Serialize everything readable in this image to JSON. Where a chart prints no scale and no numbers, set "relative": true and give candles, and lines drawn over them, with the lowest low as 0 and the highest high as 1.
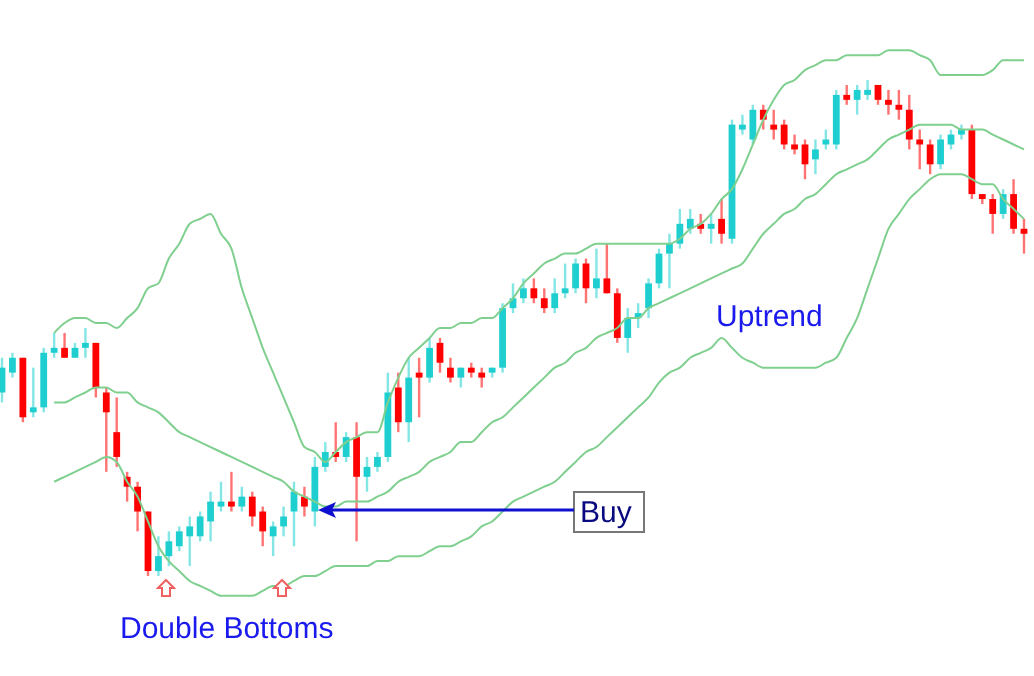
{
  "chart_data": {
    "type": "candlestick",
    "relative": true,
    "categories": [
      null,
      null,
      null,
      null,
      null,
      null,
      null,
      null,
      null,
      null,
      null,
      null,
      null,
      null,
      null,
      null,
      null,
      null,
      null,
      null,
      null,
      null,
      null,
      null,
      null,
      null,
      null,
      null,
      null,
      null,
      null,
      null,
      null,
      null,
      null,
      null,
      null,
      null,
      null,
      null,
      null,
      null,
      null,
      null,
      null,
      null,
      null,
      null,
      null,
      null,
      null,
      null,
      null,
      null,
      null,
      null,
      null,
      null,
      null,
      null,
      null,
      null,
      null,
      null,
      null,
      null,
      null,
      null,
      null,
      null,
      null,
      null,
      null,
      null,
      null,
      null,
      null,
      null,
      null,
      null,
      null,
      null,
      null,
      null,
      null,
      null,
      null,
      null,
      null,
      null,
      null,
      null,
      null,
      null,
      null,
      null,
      null,
      null,
      null
    ],
    "ohlc": [
      [
        0.37,
        0.44,
        0.35,
        0.42
      ],
      [
        0.41,
        0.45,
        0.4,
        0.44
      ],
      [
        0.44,
        0.44,
        0.31,
        0.32
      ],
      [
        0.33,
        0.42,
        0.32,
        0.34
      ],
      [
        0.34,
        0.46,
        0.33,
        0.45
      ],
      [
        0.45,
        0.49,
        0.44,
        0.46
      ],
      [
        0.46,
        0.49,
        0.44,
        0.44
      ],
      [
        0.44,
        0.47,
        0.44,
        0.46
      ],
      [
        0.46,
        0.5,
        0.44,
        0.47
      ],
      [
        0.47,
        0.47,
        0.36,
        0.38
      ],
      [
        0.37,
        0.38,
        0.21,
        0.33
      ],
      [
        0.29,
        0.36,
        0.22,
        0.24
      ],
      [
        0.2,
        0.21,
        0.15,
        0.18
      ],
      [
        0.18,
        0.19,
        0.09,
        0.13
      ],
      [
        0.13,
        0.13,
        0.0,
        0.01
      ],
      [
        0.01,
        0.08,
        0.0,
        0.04
      ],
      [
        0.04,
        0.09,
        0.02,
        0.07
      ],
      [
        0.06,
        0.1,
        0.05,
        0.09
      ],
      [
        0.08,
        0.12,
        0.02,
        0.1
      ],
      [
        0.08,
        0.13,
        0.07,
        0.12
      ],
      [
        0.11,
        0.17,
        0.07,
        0.15
      ],
      [
        0.14,
        0.19,
        0.13,
        0.15
      ],
      [
        0.15,
        0.21,
        0.13,
        0.14
      ],
      [
        0.14,
        0.18,
        0.13,
        0.16
      ],
      [
        0.16,
        0.17,
        0.1,
        0.12
      ],
      [
        0.13,
        0.14,
        0.06,
        0.09
      ],
      [
        0.08,
        0.11,
        0.04,
        0.1
      ],
      [
        0.1,
        0.14,
        0.08,
        0.12
      ],
      [
        0.13,
        0.19,
        0.06,
        0.17
      ],
      [
        0.16,
        0.18,
        0.12,
        0.14
      ],
      [
        0.13,
        0.24,
        0.1,
        0.22
      ],
      [
        0.22,
        0.27,
        0.21,
        0.25
      ],
      [
        0.25,
        0.31,
        0.23,
        0.24
      ],
      [
        0.24,
        0.29,
        0.23,
        0.28
      ],
      [
        0.28,
        0.31,
        0.07,
        0.2
      ],
      [
        0.2,
        0.24,
        0.17,
        0.22
      ],
      [
        0.22,
        0.25,
        0.21,
        0.24
      ],
      [
        0.24,
        0.41,
        0.23,
        0.37
      ],
      [
        0.38,
        0.41,
        0.29,
        0.31
      ],
      [
        0.31,
        0.44,
        0.27,
        0.4
      ],
      [
        0.41,
        0.44,
        0.32,
        0.4
      ],
      [
        0.4,
        0.48,
        0.39,
        0.46
      ],
      [
        0.47,
        0.48,
        0.41,
        0.43
      ],
      [
        0.42,
        0.44,
        0.39,
        0.4
      ],
      [
        0.4,
        0.42,
        0.38,
        0.42
      ],
      [
        0.42,
        0.43,
        0.4,
        0.41
      ],
      [
        0.41,
        0.42,
        0.38,
        0.4
      ],
      [
        0.41,
        0.42,
        0.4,
        0.42
      ],
      [
        0.42,
        0.55,
        0.41,
        0.54
      ],
      [
        0.54,
        0.59,
        0.53,
        0.56
      ],
      [
        0.56,
        0.6,
        0.55,
        0.58
      ],
      [
        0.58,
        0.6,
        0.55,
        0.56
      ],
      [
        0.56,
        0.58,
        0.53,
        0.54
      ],
      [
        0.54,
        0.6,
        0.53,
        0.57
      ],
      [
        0.57,
        0.63,
        0.56,
        0.58
      ],
      [
        0.58,
        0.64,
        0.57,
        0.63
      ],
      [
        0.63,
        0.64,
        0.55,
        0.58
      ],
      [
        0.58,
        0.66,
        0.56,
        0.6
      ],
      [
        0.6,
        0.67,
        0.57,
        0.57
      ],
      [
        0.57,
        0.58,
        0.47,
        0.48
      ],
      [
        0.48,
        0.54,
        0.45,
        0.52
      ],
      [
        0.52,
        0.55,
        0.5,
        0.53
      ],
      [
        0.54,
        0.6,
        0.52,
        0.59
      ],
      [
        0.59,
        0.66,
        0.58,
        0.65
      ],
      [
        0.65,
        0.69,
        0.58,
        0.67
      ],
      [
        0.67,
        0.74,
        0.66,
        0.71
      ],
      [
        0.7,
        0.74,
        0.69,
        0.72
      ],
      [
        0.71,
        0.73,
        0.69,
        0.7
      ],
      [
        0.7,
        0.73,
        0.67,
        0.71
      ],
      [
        0.72,
        0.76,
        0.67,
        0.69
      ],
      [
        0.68,
        0.92,
        0.67,
        0.91
      ],
      [
        0.9,
        0.93,
        0.89,
        0.91
      ],
      [
        0.88,
        0.95,
        0.87,
        0.94
      ],
      [
        0.94,
        0.95,
        0.9,
        0.92
      ],
      [
        0.91,
        0.94,
        0.88,
        0.9
      ],
      [
        0.91,
        0.92,
        0.86,
        0.87
      ],
      [
        0.87,
        0.89,
        0.85,
        0.86
      ],
      [
        0.87,
        0.88,
        0.8,
        0.83
      ],
      [
        0.84,
        0.88,
        0.81,
        0.86
      ],
      [
        0.87,
        0.9,
        0.86,
        0.88
      ],
      [
        0.87,
        0.98,
        0.86,
        0.97
      ],
      [
        0.97,
        0.99,
        0.95,
        0.96
      ],
      [
        0.96,
        0.99,
        0.93,
        0.98
      ],
      [
        0.97,
        1.0,
        0.96,
        0.98
      ],
      [
        0.99,
        0.99,
        0.95,
        0.96
      ],
      [
        0.96,
        0.98,
        0.93,
        0.95
      ],
      [
        0.95,
        0.98,
        0.92,
        0.94
      ],
      [
        0.94,
        0.97,
        0.86,
        0.88
      ],
      [
        0.88,
        0.9,
        0.82,
        0.87
      ],
      [
        0.87,
        0.88,
        0.81,
        0.83
      ],
      [
        0.83,
        0.89,
        0.82,
        0.88
      ],
      [
        0.87,
        0.9,
        0.86,
        0.89
      ],
      [
        0.89,
        0.91,
        0.88,
        0.9
      ],
      [
        0.9,
        0.91,
        0.76,
        0.77
      ],
      [
        0.77,
        0.77,
        0.75,
        0.76
      ],
      [
        0.76,
        0.77,
        0.69,
        0.73
      ],
      [
        0.73,
        0.78,
        0.72,
        0.77
      ],
      [
        0.77,
        0.8,
        0.69,
        0.7
      ],
      [
        0.7,
        0.72,
        0.65,
        0.69
      ]
    ],
    "colors": [
      "#1fcfcf",
      "#1fcfcf",
      "#ff0000",
      "#1fcfcf",
      "#1fcfcf",
      "#1fcfcf",
      "#ff0000",
      "#1fcfcf",
      "#1fcfcf",
      "#ff0000",
      "#ff0000",
      "#ff0000",
      "#ff0000",
      "#ff0000",
      "#ff0000",
      "#1fcfcf",
      "#1fcfcf",
      "#1fcfcf",
      "#1fcfcf",
      "#1fcfcf",
      "#1fcfcf",
      "#1fcfcf",
      "#ff0000",
      "#1fcfcf",
      "#ff0000",
      "#ff0000",
      "#1fcfcf",
      "#1fcfcf",
      "#1fcfcf",
      "#ff0000",
      "#1fcfcf",
      "#1fcfcf",
      "#ff0000",
      "#1fcfcf",
      "#ff0000",
      "#1fcfcf",
      "#1fcfcf",
      "#1fcfcf",
      "#ff0000",
      "#1fcfcf",
      "#ff0000",
      "#1fcfcf",
      "#ff0000",
      "#ff0000",
      "#1fcfcf",
      "#ff0000",
      "#ff0000",
      "#1fcfcf",
      "#1fcfcf",
      "#1fcfcf",
      "#1fcfcf",
      "#ff0000",
      "#ff0000",
      "#1fcfcf",
      "#1fcfcf",
      "#1fcfcf",
      "#ff0000",
      "#1fcfcf",
      "#ff0000",
      "#ff0000",
      "#1fcfcf",
      "#1fcfcf",
      "#1fcfcf",
      "#1fcfcf",
      "#1fcfcf",
      "#1fcfcf",
      "#1fcfcf",
      "#ff0000",
      "#1fcfcf",
      "#ff0000",
      "#1fcfcf",
      "#1fcfcf",
      "#1fcfcf",
      "#ff0000",
      "#ff0000",
      "#ff0000",
      "#ff0000",
      "#ff0000",
      "#1fcfcf",
      "#1fcfcf",
      "#1fcfcf",
      "#ff0000",
      "#1fcfcf",
      "#1fcfcf",
      "#ff0000",
      "#ff0000",
      "#ff0000",
      "#ff0000",
      "#ff0000",
      "#ff0000",
      "#1fcfcf",
      "#1fcfcf",
      "#1fcfcf",
      "#ff0000",
      "#ff0000",
      "#ff0000",
      "#1fcfcf",
      "#ff0000",
      "#ff0000"
    ],
    "series": [
      {
        "type": "line",
        "color": "#7fcf8f",
        "values": [
          null,
          null,
          null,
          null,
          null,
          0.49,
          0.51,
          0.52,
          0.52,
          0.51,
          0.51,
          0.5,
          0.52,
          0.54,
          0.58,
          0.59,
          0.64,
          0.67,
          0.71,
          0.72,
          0.73,
          0.69,
          0.66,
          0.58,
          0.52,
          0.46,
          0.41,
          0.36,
          0.31,
          0.26,
          0.25,
          0.23,
          0.25,
          0.27,
          0.28,
          0.29,
          0.29,
          0.35,
          0.4,
          0.44,
          0.46,
          0.48,
          0.5,
          0.5,
          0.51,
          0.51,
          0.52,
          0.52,
          0.54,
          0.56,
          0.59,
          0.61,
          0.63,
          0.64,
          0.65,
          0.65,
          0.66,
          0.67,
          0.67,
          0.67,
          0.67,
          0.67,
          0.67,
          0.67,
          0.67,
          0.68,
          0.7,
          0.71,
          0.73,
          0.76,
          0.78,
          0.82,
          0.87,
          0.92,
          0.96,
          0.99,
          1.0,
          1.02,
          1.03,
          1.04,
          1.04,
          1.05,
          1.05,
          1.05,
          1.05,
          1.06,
          1.06,
          1.06,
          1.05,
          1.04,
          1.01,
          1.01,
          1.01,
          1.01,
          1.01,
          1.02,
          1.04,
          1.04,
          1.04
        ]
      },
      {
        "type": "line",
        "color": "#7fcf8f",
        "values": [
          null,
          null,
          null,
          null,
          null,
          0.35,
          0.35,
          0.36,
          0.37,
          0.38,
          0.38,
          0.37,
          0.37,
          0.35,
          0.34,
          0.33,
          0.31,
          0.29,
          0.28,
          0.27,
          0.26,
          0.25,
          0.24,
          0.23,
          0.22,
          0.21,
          0.2,
          0.19,
          0.17,
          0.16,
          0.15,
          0.14,
          0.14,
          0.15,
          0.15,
          0.15,
          0.16,
          0.17,
          0.19,
          0.2,
          0.21,
          0.23,
          0.24,
          0.25,
          0.27,
          0.27,
          0.29,
          0.31,
          0.32,
          0.34,
          0.36,
          0.38,
          0.4,
          0.42,
          0.43,
          0.45,
          0.46,
          0.48,
          0.49,
          0.5,
          0.52,
          0.52,
          0.54,
          0.55,
          0.56,
          0.57,
          0.58,
          0.59,
          0.6,
          0.61,
          0.62,
          0.63,
          0.66,
          0.69,
          0.71,
          0.73,
          0.74,
          0.76,
          0.77,
          0.79,
          0.81,
          0.82,
          0.83,
          0.84,
          0.86,
          0.88,
          0.89,
          0.9,
          0.91,
          0.91,
          0.91,
          0.91,
          0.9,
          0.9,
          0.9,
          0.89,
          0.88,
          0.87,
          0.86
        ]
      },
      {
        "type": "line",
        "color": "#7fcf8f",
        "values": [
          null,
          null,
          null,
          null,
          null,
          0.19,
          0.2,
          0.21,
          0.22,
          0.23,
          0.24,
          0.23,
          0.19,
          0.16,
          0.11,
          0.06,
          0.03,
          0.01,
          -0.01,
          -0.02,
          -0.03,
          -0.04,
          -0.04,
          -0.04,
          -0.04,
          -0.03,
          -0.02,
          -0.02,
          -0.01,
          0.0,
          0.0,
          0.01,
          0.02,
          0.02,
          0.02,
          0.02,
          0.03,
          0.03,
          0.04,
          0.04,
          0.04,
          0.05,
          0.06,
          0.06,
          0.07,
          0.08,
          0.1,
          0.11,
          0.13,
          0.15,
          0.16,
          0.17,
          0.18,
          0.19,
          0.21,
          0.23,
          0.25,
          0.26,
          0.28,
          0.3,
          0.32,
          0.34,
          0.36,
          0.39,
          0.41,
          0.42,
          0.44,
          0.45,
          0.46,
          0.48,
          0.46,
          0.44,
          0.43,
          0.42,
          0.42,
          0.42,
          0.42,
          0.42,
          0.42,
          0.43,
          0.44,
          0.48,
          0.52,
          0.58,
          0.64,
          0.7,
          0.73,
          0.76,
          0.78,
          0.8,
          0.81,
          0.81,
          0.81,
          0.8,
          0.79,
          0.79,
          0.76,
          0.74,
          0.72
        ]
      }
    ],
    "annotations": [
      "Double Bottoms",
      "Uptrend",
      "Buy"
    ]
  }
}
